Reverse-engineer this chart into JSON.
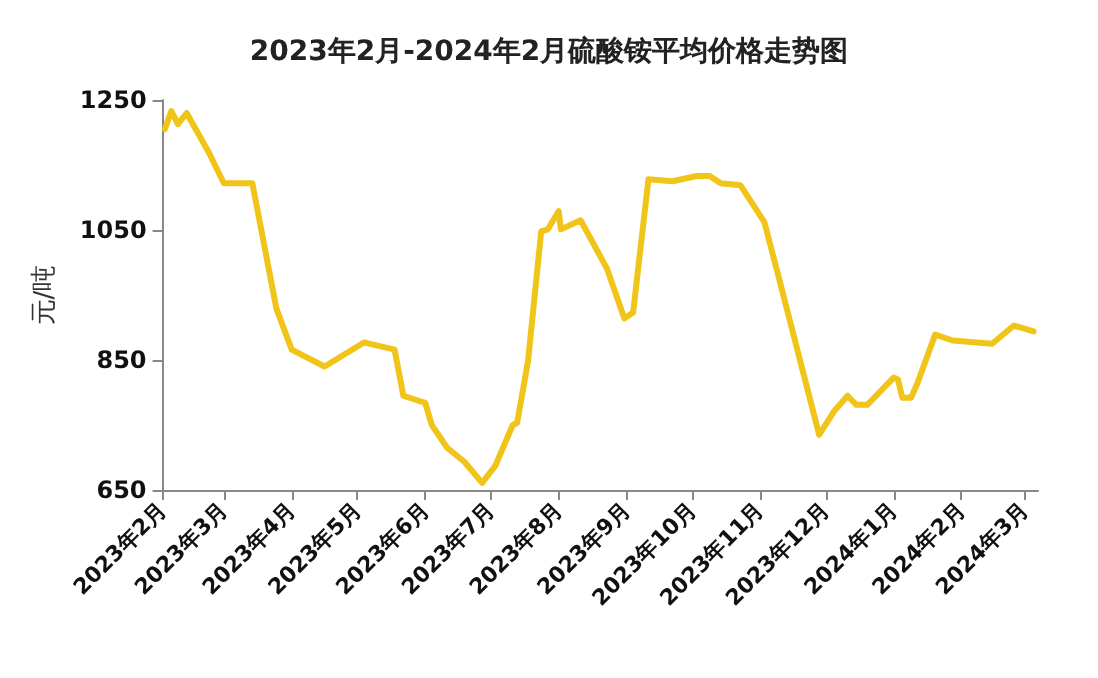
{
  "chart_data": {
    "type": "line",
    "title": "2023年2月-2024年2月硫酸铵平均价格走势图",
    "ylabel": "元/吨",
    "x": [
      "2023-02-02",
      "2023-02-05",
      "2023-02-08",
      "2023-02-12",
      "2023-02-22",
      "2023-03-01",
      "2023-03-14",
      "2023-03-25",
      "2023-04-01",
      "2023-04-16",
      "2023-05-04",
      "2023-05-18",
      "2023-05-22",
      "2023-06-01",
      "2023-06-04",
      "2023-06-11",
      "2023-06-19",
      "2023-06-27",
      "2023-07-03",
      "2023-07-11",
      "2023-07-13",
      "2023-07-18",
      "2023-07-24",
      "2023-07-27",
      "2023-08-01",
      "2023-08-02",
      "2023-08-11",
      "2023-08-23",
      "2023-08-31",
      "2023-09-04",
      "2023-09-11",
      "2023-09-22",
      "2023-10-03",
      "2023-10-09",
      "2023-10-14",
      "2023-10-23",
      "2023-11-03",
      "2023-11-10",
      "2023-11-28",
      "2023-12-05",
      "2023-12-11",
      "2023-12-15",
      "2023-12-20",
      "2024-01-01",
      "2024-01-03",
      "2024-01-05",
      "2024-01-09",
      "2024-01-12",
      "2024-01-20",
      "2024-01-28",
      "2024-02-15",
      "2024-02-25",
      "2024-03-05"
    ],
    "series": [
      {
        "color": "#f0c419",
        "values": [
          1205,
          1233,
          1213,
          1230,
          1170,
          1122,
          1122,
          929,
          866,
          840,
          877,
          866,
          795,
          784,
          750,
          715,
          693,
          661,
          687,
          750,
          753,
          849,
          1048,
          1051,
          1079,
          1051,
          1065,
          991,
          914,
          923,
          1128,
          1125,
          1133,
          1133,
          1122,
          1119,
          1062,
          971,
          735,
          772,
          795,
          781,
          781,
          823,
          820,
          792,
          792,
          815,
          889,
          880,
          875,
          903,
          894
        ]
      }
    ],
    "xlim": [
      "2023-02-01",
      "2024-03-07"
    ],
    "xticks": [
      {
        "value": "2023-02-01",
        "label": "2023年2月"
      },
      {
        "value": "2023-03-01",
        "label": "2023年3月"
      },
      {
        "value": "2023-04-01",
        "label": "2023年4月"
      },
      {
        "value": "2023-05-01",
        "label": "2023年5月"
      },
      {
        "value": "2023-06-01",
        "label": "2023年6月"
      },
      {
        "value": "2023-07-01",
        "label": "2023年7月"
      },
      {
        "value": "2023-08-01",
        "label": "2023年8月"
      },
      {
        "value": "2023-09-01",
        "label": "2023年9月"
      },
      {
        "value": "2023-10-01",
        "label": "2023年10月"
      },
      {
        "value": "2023-11-01",
        "label": "2023年11月"
      },
      {
        "value": "2023-12-01",
        "label": "2023年12月"
      },
      {
        "value": "2024-01-01",
        "label": "2024年1月"
      },
      {
        "value": "2024-02-01",
        "label": "2024年2月"
      },
      {
        "value": "2024-03-01",
        "label": "2024年3月"
      }
    ],
    "ylim": [
      650,
      1250
    ],
    "yticks": [
      650,
      850,
      1050,
      1250
    ],
    "grid": false,
    "marker": "none",
    "line_style": "solid"
  }
}
